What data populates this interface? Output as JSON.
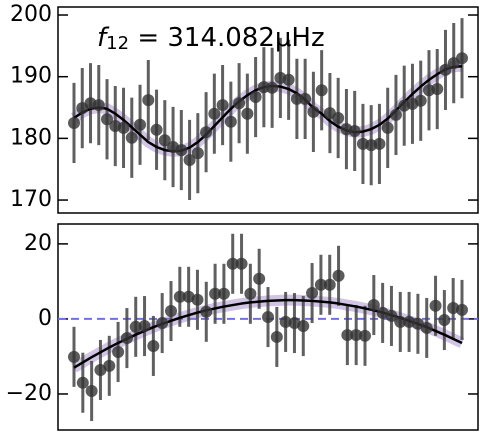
{
  "chart_data": [
    {
      "type": "scatter",
      "annotation": {
        "symbol": "f",
        "subscript": "12",
        "text": " = 314.082μHz"
      },
      "values": [
        182.5,
        184.9,
        185.7,
        185.4,
        183.1,
        182.0,
        181.7,
        180.1,
        182.2,
        186.2,
        181.4,
        179.7,
        178.6,
        178.1,
        176.5,
        177.6,
        181.0,
        184.0,
        185.4,
        182.7,
        185.7,
        184.0,
        186.7,
        188.3,
        188.2,
        189.8,
        189.5,
        186.4,
        186.4,
        184.3,
        187.8,
        184.1,
        183.3,
        181.5,
        181.2,
        179.1,
        178.9,
        179.1,
        181.7,
        183.8,
        185.3,
        185.6,
        186.1,
        187.8,
        188.0,
        191.1,
        192.2,
        193.0
      ],
      "errors": [
        6.5,
        6.5,
        6.5,
        6.5,
        6.5,
        6.5,
        6.5,
        6.5,
        6.5,
        6.5,
        6.5,
        6.5,
        6.5,
        6.5,
        6.5,
        6.5,
        6.5,
        6.5,
        6.5,
        6.5,
        6.5,
        6.5,
        6.5,
        6.5,
        6.5,
        6.5,
        6.5,
        6.5,
        6.5,
        6.5,
        6.5,
        6.5,
        6.5,
        6.5,
        6.5,
        6.5,
        6.5,
        6.5,
        6.5,
        6.5,
        6.5,
        6.5,
        6.5,
        6.5,
        6.5,
        6.5,
        6.5,
        6.5
      ],
      "color": "#333333",
      "fit": {
        "color": "#000000",
        "band_color": "#9a7cc6",
        "values": [
          183.3,
          184.2,
          184.8,
          185.0,
          184.8,
          184.0,
          183.0,
          181.8,
          180.6,
          179.4,
          178.6,
          178.1,
          177.9,
          178.0,
          178.5,
          179.4,
          180.6,
          182.0,
          183.4,
          184.8,
          186.0,
          187.0,
          187.8,
          188.3,
          188.5,
          188.4,
          188.0,
          187.3,
          186.3,
          184.9,
          184.0,
          182.8,
          181.9,
          181.3,
          181.0,
          181.1,
          181.5,
          182.2,
          183.2,
          184.5,
          185.9,
          187.2,
          188.4,
          189.5,
          190.4,
          191.2,
          191.6,
          191.7
        ]
      },
      "ylim": [
        167.9,
        201.3
      ],
      "yticks": [
        170,
        180,
        190,
        200
      ]
    },
    {
      "type": "scatter",
      "values": [
        -10.1,
        -17,
        -19.2,
        -13.6,
        -12.5,
        -8.8,
        -5.1,
        -2.1,
        -1.9,
        -7.2,
        -1.1,
        2.1,
        5.9,
        5.9,
        5.1,
        1.9,
        6.7,
        6.7,
        14.7,
        14.7,
        6.7,
        10.7,
        0.5,
        -4.8,
        -0.8,
        -1.1,
        -1.9,
        6.9,
        9.1,
        9.1,
        11.5,
        -4.3,
        -4.3,
        -4.5,
        3.7,
        1.6,
        0.8,
        -0.8,
        -0.8,
        -1.3,
        -2.4,
        3.5,
        -0.3,
        2.9,
        2.4
      ],
      "errors": [
        8,
        8,
        8,
        8,
        8,
        8,
        8,
        8,
        8,
        8,
        8,
        8,
        8,
        8,
        8,
        8,
        8,
        8,
        8,
        8,
        8,
        8,
        8,
        8,
        8,
        8,
        8,
        8,
        8,
        8,
        8,
        8,
        8,
        8,
        8,
        8,
        8,
        8,
        8,
        8,
        8,
        8,
        8,
        8,
        8
      ],
      "color": "#333333",
      "fit": {
        "color": "#000000",
        "band_color": "#9a7cc6",
        "values": [
          -13.0,
          -11.6,
          -10.2,
          -8.9,
          -7.6,
          -6.4,
          -5.3,
          -4.2,
          -3.2,
          -2.2,
          -1.3,
          -0.5,
          0.3,
          1.0,
          1.7,
          2.3,
          2.8,
          3.3,
          3.7,
          4.1,
          4.4,
          4.6,
          4.8,
          4.9,
          5.0,
          5.0,
          4.9,
          4.8,
          4.6,
          4.4,
          4.1,
          3.7,
          3.3,
          2.8,
          2.3,
          1.7,
          1.0,
          0.3,
          -0.5,
          -1.3,
          -2.2,
          -3.2,
          -4.2,
          -5.3,
          -6.4
        ]
      },
      "reference_line": {
        "value": 0,
        "color": "#7070e8"
      },
      "ylim": [
        -29.6,
        25.3
      ],
      "yticks": [
        {
          "value": -20,
          "label": "−20"
        },
        0,
        20
      ]
    }
  ]
}
